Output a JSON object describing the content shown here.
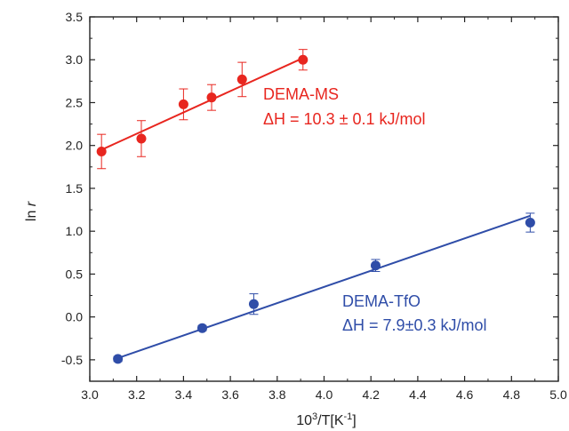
{
  "chart_data": {
    "type": "scatter",
    "xlabel": "10³/T[K⁻¹]",
    "ylabel": "ln r",
    "xlim": [
      3.0,
      5.0
    ],
    "ylim": [
      -0.75,
      3.5
    ],
    "xticks": [
      "3.0",
      "3.2",
      "3.4",
      "3.6",
      "3.8",
      "4.0",
      "4.2",
      "4.4",
      "4.6",
      "4.8",
      "5.0"
    ],
    "yticks": [
      "-0.5",
      "0.0",
      "0.5",
      "1.0",
      "1.5",
      "2.0",
      "2.5",
      "3.0",
      "3.5"
    ],
    "grid": false,
    "series": [
      {
        "name": "DEMA-MS",
        "color": "#e8261f",
        "points": [
          {
            "x": 3.05,
            "y": 1.93,
            "err": 0.2
          },
          {
            "x": 3.22,
            "y": 2.08,
            "err": 0.21
          },
          {
            "x": 3.4,
            "y": 2.48,
            "err": 0.18
          },
          {
            "x": 3.52,
            "y": 2.56,
            "err": 0.15
          },
          {
            "x": 3.65,
            "y": 2.77,
            "err": 0.2
          },
          {
            "x": 3.91,
            "y": 3.0,
            "err": 0.12
          }
        ],
        "fit": [
          {
            "x": 3.05,
            "y": 1.95
          },
          {
            "x": 3.91,
            "y": 3.02
          }
        ],
        "annotation": {
          "name": "DEMA-MS",
          "dh_symbol": "ΔH",
          "dh_value": " = 10.3 ± 0.1 kJ/mol"
        }
      },
      {
        "name": "DEMA-TfO",
        "color": "#2f4da8",
        "points": [
          {
            "x": 3.12,
            "y": -0.49,
            "err": 0.03
          },
          {
            "x": 3.48,
            "y": -0.13,
            "err": 0.03
          },
          {
            "x": 3.7,
            "y": 0.15,
            "err": 0.12
          },
          {
            "x": 4.22,
            "y": 0.6,
            "err": 0.07
          },
          {
            "x": 4.88,
            "y": 1.1,
            "err": 0.11
          }
        ],
        "fit": [
          {
            "x": 3.12,
            "y": -0.48
          },
          {
            "x": 4.88,
            "y": 1.18
          }
        ],
        "annotation": {
          "name": "DEMA-TfO",
          "dh_symbol": "ΔH",
          "dh_value": " = 7.9±0.3 kJ/mol"
        }
      }
    ]
  }
}
